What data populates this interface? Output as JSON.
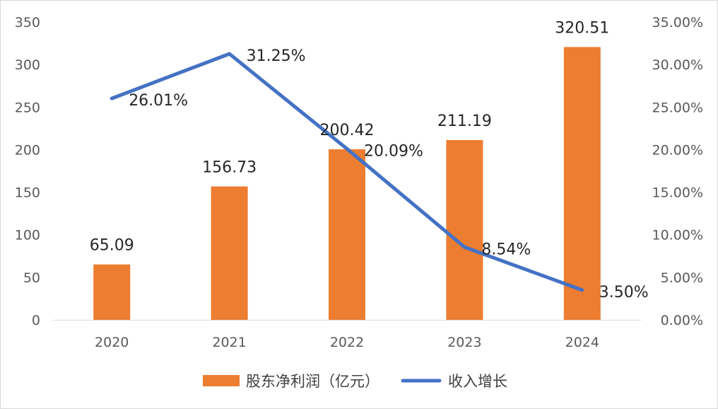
{
  "chart_data": {
    "type": "bar",
    "categories": [
      "2020",
      "2021",
      "2022",
      "2023",
      "2024"
    ],
    "series": [
      {
        "name": "股东净利润（亿元）",
        "kind": "bar",
        "axis": "left",
        "color": "#ED7D31",
        "values": [
          65.09,
          156.73,
          200.42,
          211.19,
          320.51
        ],
        "labels": [
          "65.09",
          "156.73",
          "200.42",
          "211.19",
          "320.51"
        ]
      },
      {
        "name": "收入增长",
        "kind": "line",
        "axis": "right",
        "color": "#4472C4",
        "values": [
          26.01,
          31.25,
          20.09,
          8.54,
          3.5
        ],
        "labels": [
          "26.01%",
          "31.25%",
          "20.09%",
          "8.54%",
          "3.50%"
        ]
      }
    ],
    "y_left": {
      "range": [
        0,
        350
      ],
      "ticks": [
        "0",
        "50",
        "100",
        "150",
        "200",
        "250",
        "300",
        "350"
      ]
    },
    "y_right": {
      "range": [
        0,
        35
      ],
      "ticks": [
        "0.00%",
        "5.00%",
        "10.00%",
        "15.00%",
        "20.00%",
        "25.00%",
        "30.00%",
        "35.00%"
      ]
    },
    "legend": {
      "position": "bottom"
    },
    "grid": false
  }
}
